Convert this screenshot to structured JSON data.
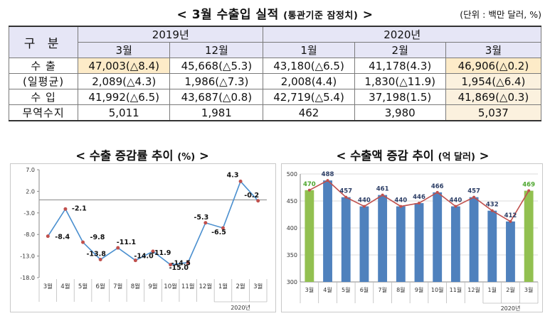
{
  "header": {
    "title": "< 3월 수출입 실적",
    "title_sub": "(통관기준 잠정치)",
    "title_end": ">",
    "unit": "(단위 : 백만 달러, %)"
  },
  "table": {
    "corner": "구 분",
    "year_headers": [
      "2019년",
      "2020년"
    ],
    "month_headers": [
      "3월",
      "12월",
      "1월",
      "2월",
      "3월"
    ],
    "rows": [
      {
        "label": "수 출",
        "cells": [
          "47,003(△8.4)",
          "45,668(△5.3)",
          "43,180(△6.5)",
          "41,178(4.3)",
          "46,906(△0.2)"
        ]
      },
      {
        "label": "(일평균)",
        "cells": [
          "2,089(△4.3)",
          "1,986(△7.3)",
          "2,008(4.4)",
          "1,830(△11.9)",
          "1,954(△6.4)"
        ]
      },
      {
        "label": "수 입",
        "cells": [
          "41,992(△6.5)",
          "43,687(△0.8)",
          "42,719(△5.4)",
          "37,198(1.5)",
          "41,869(△0.3)"
        ]
      },
      {
        "label": "무역수지",
        "cells": [
          "5,011",
          "1,981",
          "462",
          "3,980",
          "5,037"
        ]
      }
    ]
  },
  "chart_titles": {
    "left": "< 수출 증감률 추이",
    "left_sub": "(%)",
    "left_end": ">",
    "right": "< 수출액 증감 추이",
    "right_sub": "(억 달러)",
    "right_end": ">"
  },
  "chart_data": [
    {
      "type": "line",
      "x": [
        "3월",
        "4월",
        "5월",
        "6월",
        "7월",
        "8월",
        "9월",
        "10월",
        "11월",
        "12월",
        "1월",
        "2월",
        "3월"
      ],
      "x_group_label": "2020년",
      "series": [
        {
          "values": [
            -8.4,
            -2.1,
            -9.8,
            -13.8,
            -11.1,
            -14.0,
            -11.9,
            -15.0,
            -14.5,
            -5.3,
            -6.5,
            4.3,
            -0.2
          ]
        }
      ],
      "data_labels": [
        "-8.4",
        "-2.1",
        "-9.8",
        "-13.8",
        "-11.1",
        "-14.0",
        "-11.9",
        "-15.0",
        "-14.5",
        "-5.3",
        "-6.5",
        "4.3",
        "-0.2"
      ],
      "ylim": [
        -18.0,
        7.0
      ],
      "yticks": [
        "7.0",
        "2.0",
        "-3.0",
        "-8.0",
        "-13.0",
        "-18.0"
      ],
      "colors": {
        "line": "#4a8fcf",
        "marker": "#c0504d"
      }
    },
    {
      "type": "bar",
      "categories": [
        "3월",
        "4월",
        "5월",
        "6월",
        "7월",
        "8월",
        "9월",
        "10월",
        "11월",
        "12월",
        "1월",
        "2월",
        "3월"
      ],
      "x_group_label": "2020년",
      "series": [
        {
          "values": [
            470,
            488,
            457,
            440,
            461,
            440,
            446,
            466,
            440,
            457,
            432,
            412,
            469
          ]
        }
      ],
      "data_labels": [
        "470",
        "488",
        "457",
        "440",
        "461",
        "440",
        "446",
        "466",
        "440",
        "457",
        "432",
        "412",
        "469"
      ],
      "ylim": [
        300,
        500
      ],
      "yticks": [
        "500",
        "450",
        "400",
        "350",
        "300"
      ],
      "overlay_line": true,
      "colors": {
        "bar": "#4f81bd",
        "bar_highlight": "#92c050",
        "line": "#c0504d",
        "label": "#2c3e66",
        "label_highlight": "#4ea72e"
      }
    }
  ]
}
